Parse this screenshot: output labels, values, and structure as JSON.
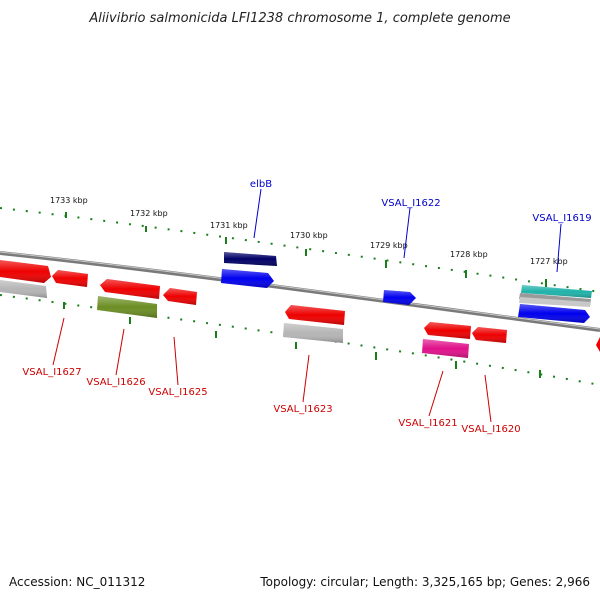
{
  "title": "Aliivibrio salmonicida LFI1238 chromosome 1, complete genome",
  "footer": {
    "accession": "Accession: NC_011312",
    "summary": "Topology: circular; Length: 3,325,165 bp; Genes: 2,966"
  },
  "colors": {
    "backbone": "#808080",
    "tick": "#1a7f1a",
    "label_forward": "#0000cc",
    "label_reverse": "#cc0000",
    "red": "#ee0000",
    "blue": "#0000ee",
    "navy": "#000066",
    "gray": "#b5b5b5",
    "olive": "#6b8e23",
    "magenta": "#e0118a",
    "cyan": "#20b2aa"
  },
  "ticks": [
    {
      "label": "1733 kbp"
    },
    {
      "label": "1732 kbp"
    },
    {
      "label": "1731 kbp"
    },
    {
      "label": "1730 kbp"
    },
    {
      "label": "1729 kbp"
    },
    {
      "label": "1728 kbp"
    },
    {
      "label": "1727 kbp"
    }
  ],
  "gene_labels": {
    "elbB": "elbB",
    "VSAL_I1622": "VSAL_I1622",
    "VSAL_I1619": "VSAL_I1619",
    "VSAL_I1627": "VSAL_I1627",
    "VSAL_I1626": "VSAL_I1626",
    "VSAL_I1625": "VSAL_I1625",
    "VSAL_I1623": "VSAL_I1623",
    "VSAL_I1621": "VSAL_I1621",
    "VSAL_I1620": "VSAL_I1620"
  }
}
